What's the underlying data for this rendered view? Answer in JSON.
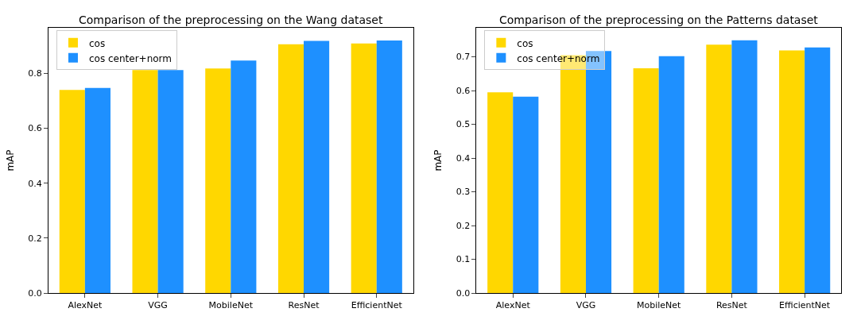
{
  "chart_data": [
    {
      "type": "bar",
      "title": "Comparison of the preprocessing on the Wang dataset",
      "ylabel": "mAP",
      "categories": [
        "AlexNet",
        "VGG",
        "MobileNet",
        "ResNet",
        "EfficientNet"
      ],
      "series": [
        {
          "name": "cos",
          "color": "#ffd700",
          "values": [
            0.74,
            0.812,
            0.818,
            0.906,
            0.909
          ]
        },
        {
          "name": "cos center+norm",
          "color": "#1e90ff",
          "values": [
            0.747,
            0.812,
            0.847,
            0.918,
            0.92
          ]
        }
      ],
      "ylim": [
        0,
        0.966
      ],
      "yticks": [
        {
          "value": 0,
          "label": "0.0"
        },
        0.2,
        0.4,
        0.6,
        0.8
      ],
      "legend": "top left",
      "grid": false
    },
    {
      "type": "bar",
      "title": "Comparison of the preprocessing on the Patterns dataset",
      "ylabel": "mAP",
      "categories": [
        "AlexNet",
        "VGG",
        "MobileNet",
        "ResNet",
        "EfficientNet"
      ],
      "series": [
        {
          "name": "cos",
          "color": "#ffd700",
          "values": [
            0.595,
            0.705,
            0.666,
            0.736,
            0.719
          ]
        },
        {
          "name": "cos center+norm",
          "color": "#1e90ff",
          "values": [
            0.582,
            0.717,
            0.702,
            0.749,
            0.728
          ]
        }
      ],
      "ylim": [
        0,
        0.786
      ],
      "yticks": [
        {
          "value": 0,
          "label": "0.0"
        },
        0.1,
        0.2,
        0.3,
        0.4,
        0.5,
        0.6,
        0.7
      ],
      "legend": "top left",
      "grid": false
    }
  ]
}
